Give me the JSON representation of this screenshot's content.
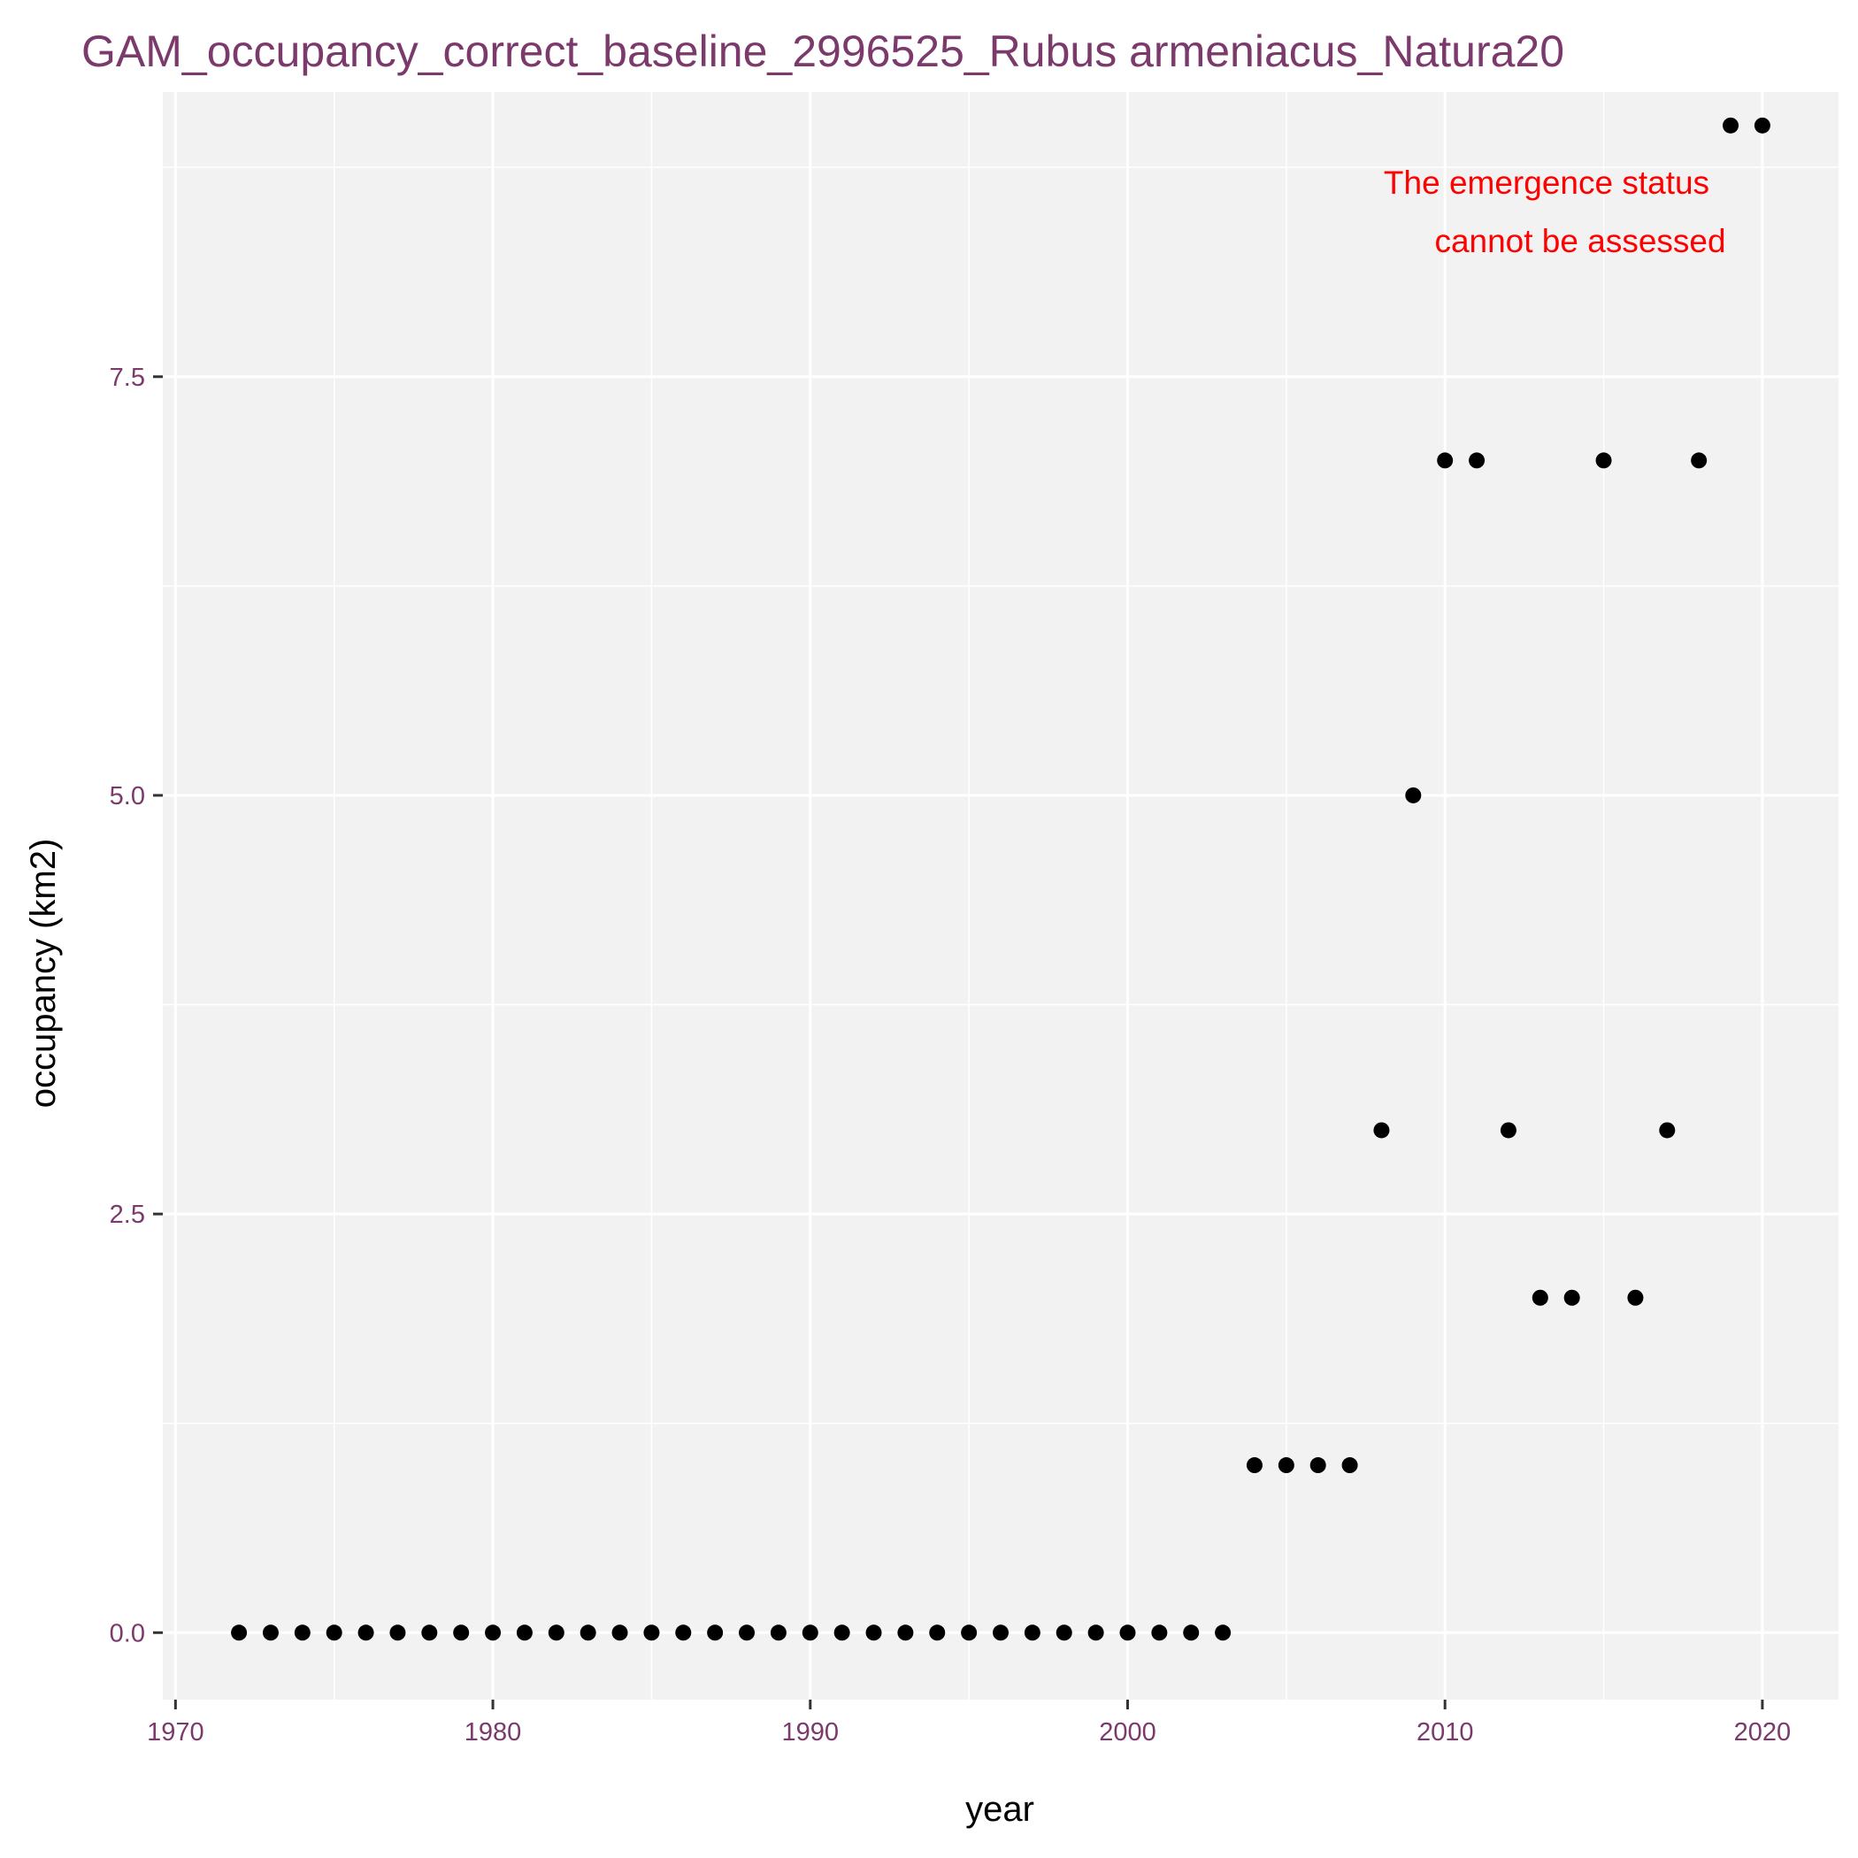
{
  "chart_data": {
    "type": "scatter",
    "title": "GAM_occupancy_correct_baseline_2996525_Rubus armeniacus_Natura20",
    "xlabel": "year",
    "ylabel": "occupancy (km2)",
    "xlim": [
      1969.6,
      2022.4
    ],
    "ylim": [
      -0.4,
      9.2
    ],
    "x_ticks": [
      1970,
      1980,
      1990,
      2000,
      2010,
      2020
    ],
    "x_tick_labels": [
      "1970",
      "1980",
      "1990",
      "2000",
      "2010",
      "2020"
    ],
    "y_ticks": [
      0,
      2.5,
      5,
      7.5
    ],
    "y_tick_labels": [
      "0.0",
      "2.5",
      "5.0",
      "7.5"
    ],
    "grid": true,
    "panel_color": "#f2f2f2",
    "point_color": "#000000",
    "tick_label_color": "#7b3a6b",
    "annotation": {
      "lines": [
        "The emergence status",
        "cannot be assessed"
      ],
      "color": "#ff0000"
    },
    "points": {
      "x": [
        1972,
        1973,
        1974,
        1975,
        1976,
        1977,
        1978,
        1979,
        1980,
        1981,
        1982,
        1983,
        1984,
        1985,
        1986,
        1987,
        1988,
        1989,
        1990,
        1991,
        1992,
        1993,
        1994,
        1995,
        1996,
        1997,
        1998,
        1999,
        2000,
        2001,
        2002,
        2003,
        2004,
        2005,
        2006,
        2007,
        2008,
        2009,
        2010,
        2011,
        2012,
        2013,
        2014,
        2015,
        2016,
        2017,
        2018,
        2019,
        2020
      ],
      "y": [
        0,
        0,
        0,
        0,
        0,
        0,
        0,
        0,
        0,
        0,
        0,
        0,
        0,
        0,
        0,
        0,
        0,
        0,
        0,
        0,
        0,
        0,
        0,
        0,
        0,
        0,
        0,
        0,
        0,
        0,
        0,
        0,
        1,
        1,
        1,
        1,
        3,
        5,
        7,
        7,
        3,
        2,
        2,
        7,
        2,
        3,
        7,
        9,
        9
      ]
    }
  }
}
